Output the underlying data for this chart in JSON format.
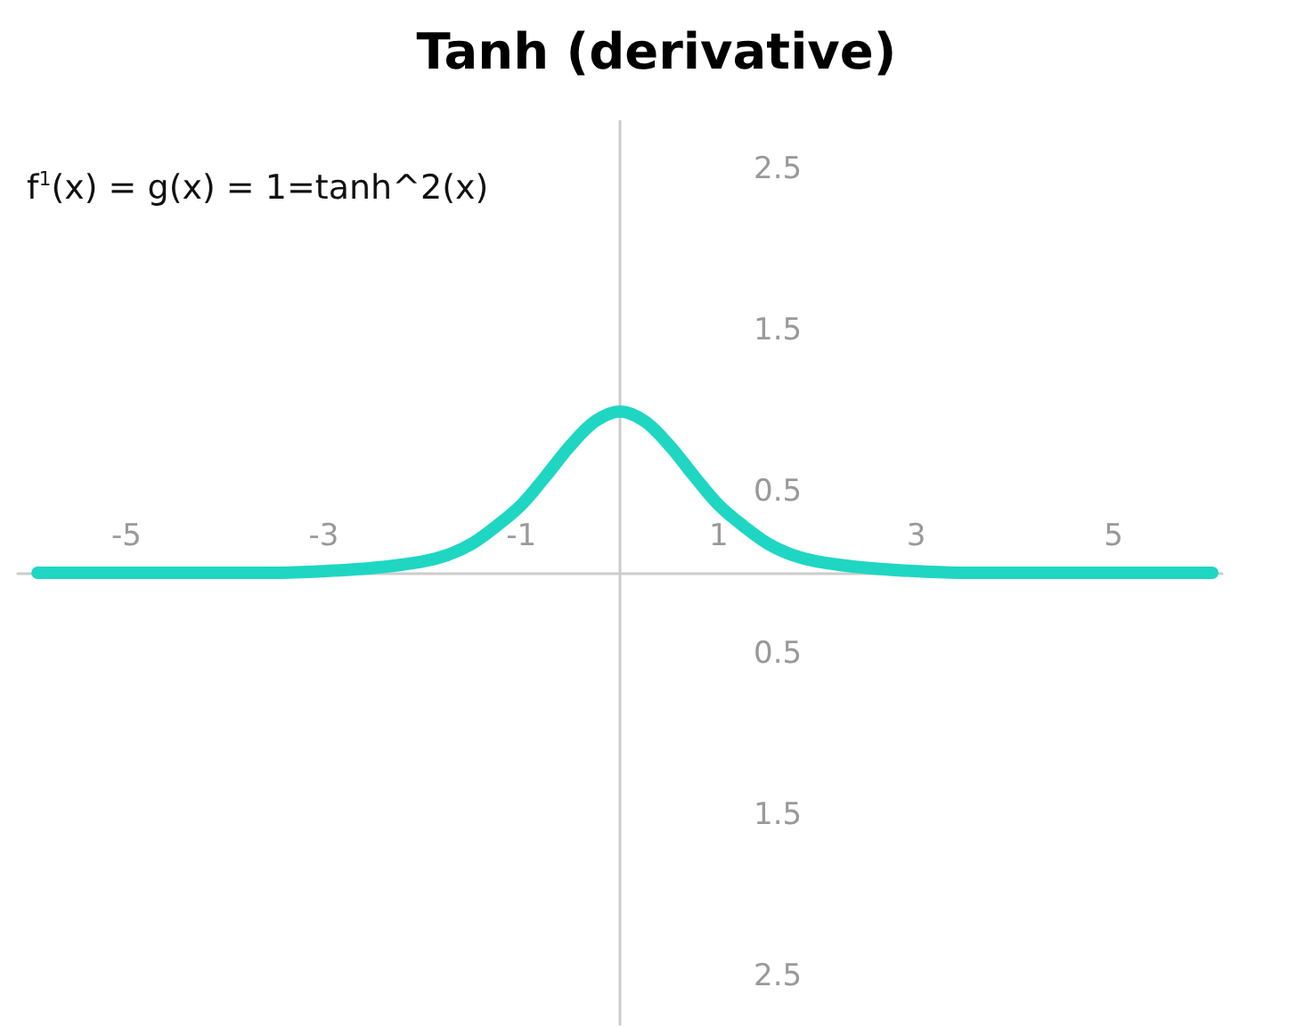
{
  "chart_data": {
    "type": "line",
    "title": "Tanh (derivative)",
    "annotations": [
      "f$^{1}$(x) = g(x) = 1=tanh^2(x)"
    ],
    "x": [
      -5.9,
      -5,
      -4,
      -3.5,
      -3,
      -2.5,
      -2,
      -1.75,
      -1.5,
      -1.25,
      -1,
      -0.75,
      -0.5,
      -0.25,
      0,
      0.25,
      0.5,
      0.75,
      1,
      1.25,
      1.5,
      1.75,
      2,
      2.5,
      3,
      3.5,
      4,
      5,
      6
    ],
    "series": [
      {
        "color": "#1fd6c3",
        "values": [
          0,
          0,
          0,
          0,
          0.01,
          0.03,
          0.07,
          0.11,
          0.18,
          0.29,
          0.42,
          0.6,
          0.79,
          0.94,
          1,
          0.94,
          0.79,
          0.6,
          0.42,
          0.29,
          0.18,
          0.11,
          0.07,
          0.03,
          0.01,
          0,
          0,
          0,
          0
        ]
      }
    ],
    "xlim": [
      -6.1,
      6.1
    ],
    "xticks": [
      -5,
      -3,
      -1,
      1,
      3,
      5
    ],
    "ylim": [
      -2.8,
      2.8
    ],
    "yticks": [
      2.5,
      1.5,
      0.5,
      {
        "value": -0.5,
        "label": "0.5"
      },
      {
        "value": -1.5,
        "label": "1.5"
      },
      {
        "value": -2.5,
        "label": "2.5"
      }
    ],
    "grid": false,
    "line_style": "solid"
  }
}
